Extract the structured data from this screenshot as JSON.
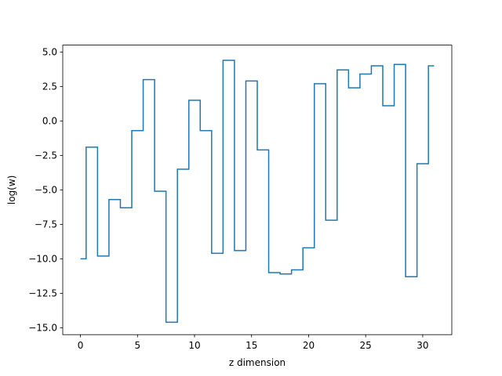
{
  "chart_data": {
    "type": "line",
    "drawstyle": "steps-mid",
    "title": "",
    "xlabel": "z dimension",
    "ylabel": "log(w)",
    "xlim": [
      -1.55,
      32.55
    ],
    "ylim": [
      -15.5,
      5.5
    ],
    "xticks": [
      0,
      5,
      10,
      15,
      20,
      25,
      30
    ],
    "yticks": [
      -15.0,
      -12.5,
      -10.0,
      -7.5,
      -5.0,
      -2.5,
      0.0,
      2.5,
      5.0
    ],
    "xtick_labels": [
      "0",
      "5",
      "10",
      "15",
      "20",
      "25",
      "30"
    ],
    "ytick_labels": [
      "−15.0",
      "−12.5",
      "−10.0",
      "−7.5",
      "−5.0",
      "−2.5",
      "0.0",
      "2.5",
      "5.0"
    ],
    "grid": false,
    "line_color": "#1f77b4",
    "series": [
      {
        "x": [
          0,
          1,
          2,
          3,
          4,
          5,
          6,
          7,
          8,
          9,
          10,
          11,
          12,
          13,
          14,
          15,
          16,
          17,
          18,
          19,
          20,
          21,
          22,
          23,
          24,
          25,
          26,
          27,
          28,
          29,
          30,
          31
        ],
        "values": [
          -10.0,
          -1.9,
          -9.8,
          -5.7,
          -6.3,
          -0.7,
          3.0,
          -5.1,
          -14.6,
          -3.5,
          1.5,
          -0.7,
          -9.6,
          4.4,
          -9.4,
          2.9,
          -2.1,
          -11.0,
          -11.1,
          -10.8,
          -9.2,
          2.7,
          -7.2,
          3.7,
          2.4,
          3.4,
          4.0,
          1.1,
          4.1,
          -11.3,
          -3.1,
          4.0
        ]
      }
    ]
  }
}
